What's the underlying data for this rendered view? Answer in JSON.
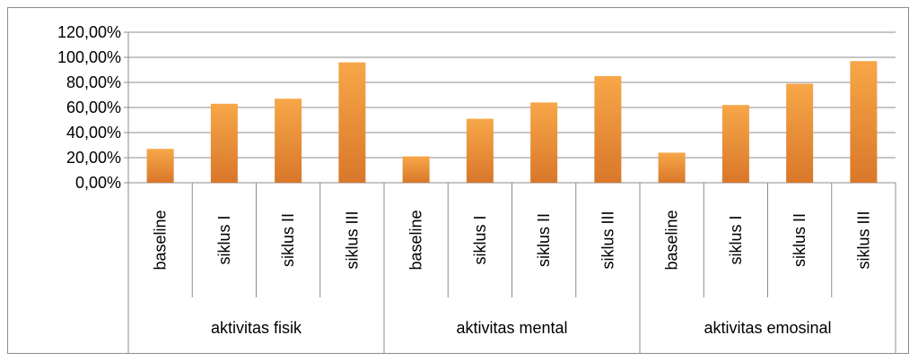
{
  "chart_data": {
    "type": "bar",
    "title": "",
    "xlabel": "",
    "ylabel": "",
    "ylim": [
      0,
      120
    ],
    "y_ticks": [
      "0,00%",
      "20,00%",
      "40,00%",
      "60,00%",
      "80,00%",
      "100,00%",
      "120,00%"
    ],
    "grid": true,
    "legend": "none",
    "bar_color": "#f39a3c",
    "bar_color_dark": "#d9772a",
    "groups": [
      {
        "label": "aktivitas fisik",
        "categories": [
          "baseline",
          "siklus I",
          "siklus II",
          "siklus III"
        ],
        "values": [
          27,
          63,
          67,
          96
        ]
      },
      {
        "label": "aktivitas mental",
        "categories": [
          "baseline",
          "siklus I",
          "siklus II",
          "siklus III"
        ],
        "values": [
          21,
          51,
          64,
          85
        ]
      },
      {
        "label": "aktivitas emosinal",
        "categories": [
          "baseline",
          "siklus I",
          "siklus II",
          "siklus III"
        ],
        "values": [
          24,
          62,
          79,
          97
        ]
      }
    ]
  }
}
